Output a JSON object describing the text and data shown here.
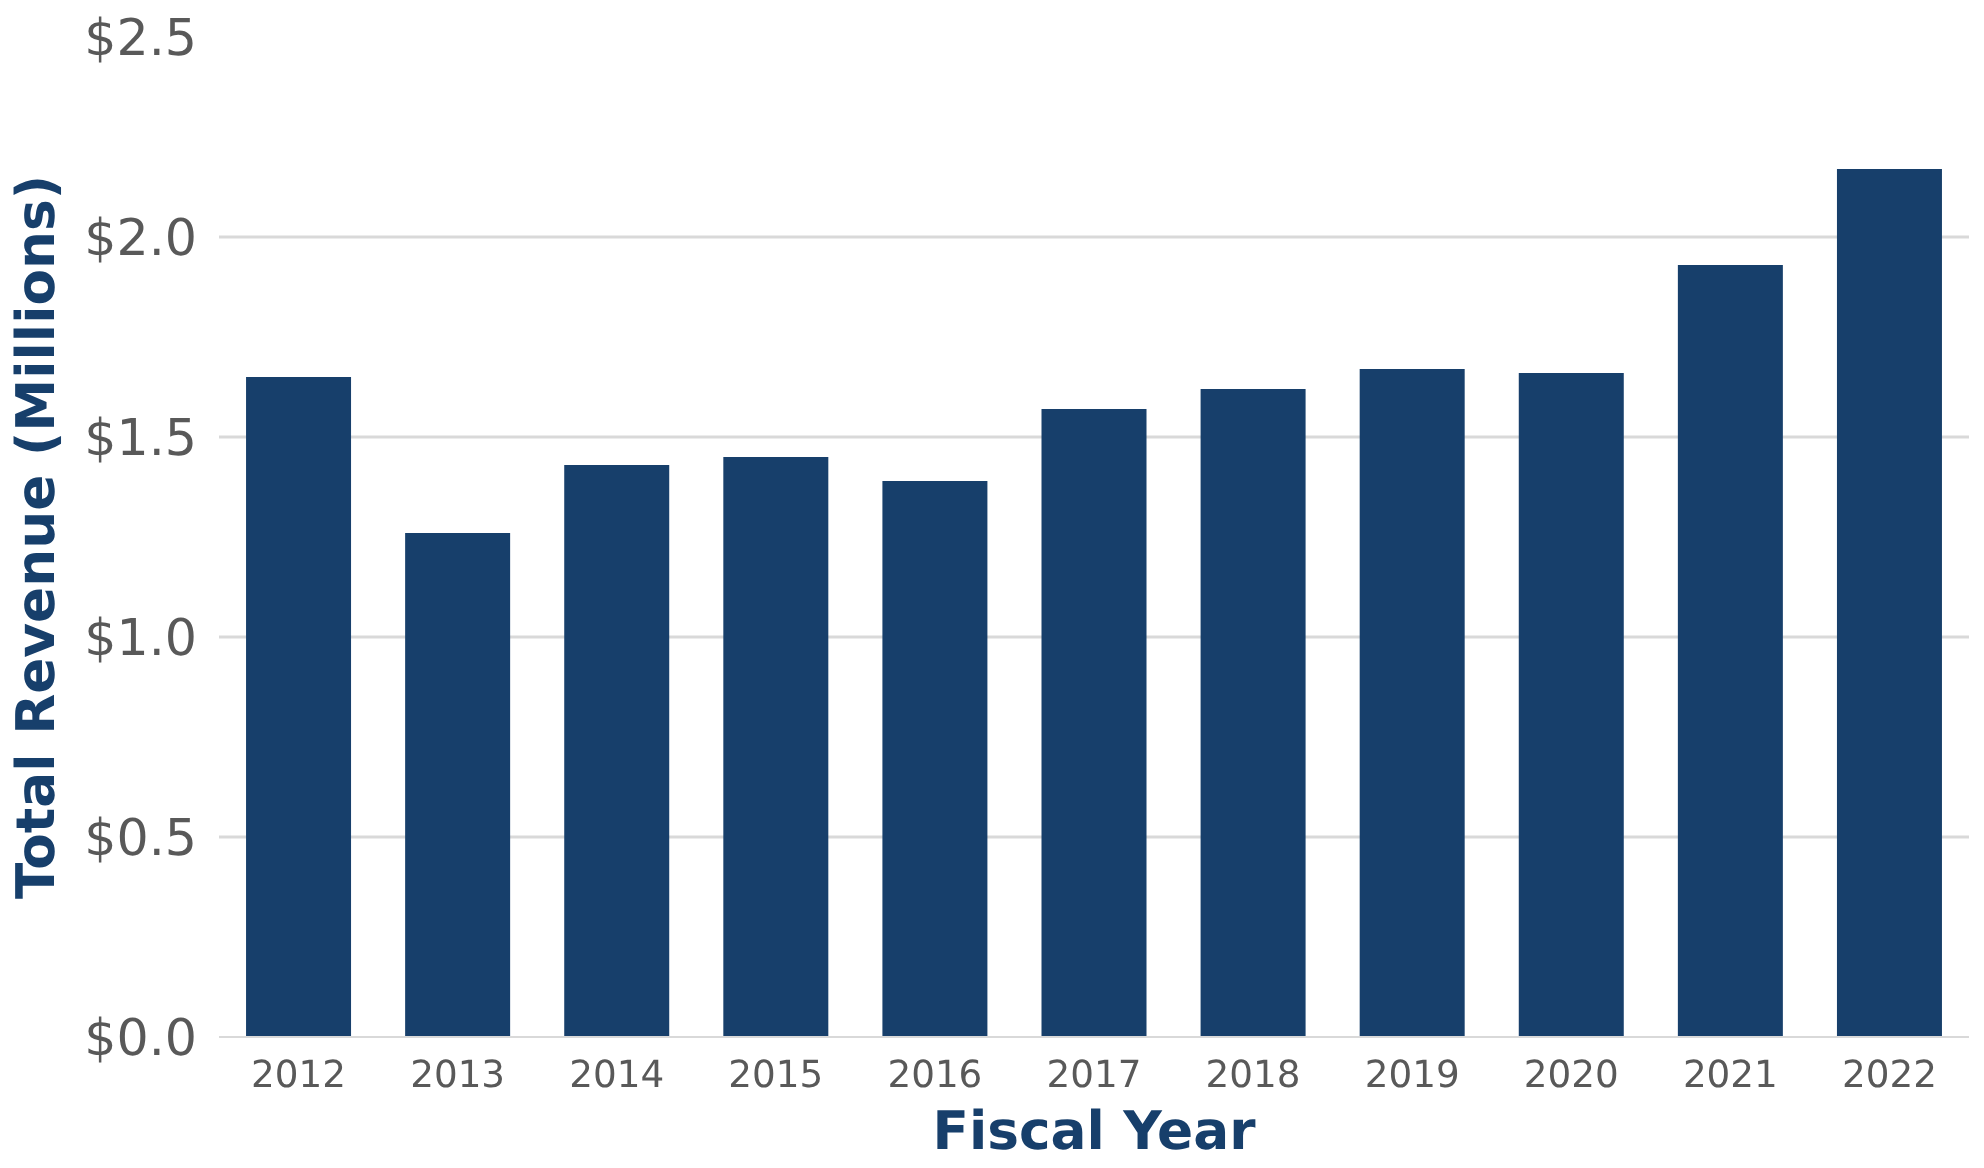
{
  "chart_data": {
    "type": "bar",
    "xlabel": "Fiscal Year",
    "ylabel": "Total Revenue (Millions)",
    "categories": [
      "2012",
      "2013",
      "2014",
      "2015",
      "2016",
      "2017",
      "2018",
      "2019",
      "2020",
      "2021",
      "2022"
    ],
    "values": [
      1.65,
      1.26,
      1.43,
      1.45,
      1.39,
      1.57,
      1.62,
      1.67,
      1.66,
      1.93,
      2.17
    ],
    "color": "#173f6b",
    "ylim": [
      0,
      2.5
    ],
    "yticks": [
      {
        "value": 0,
        "label": "$0.0"
      },
      {
        "value": 0.5,
        "label": "$0.5"
      },
      {
        "value": 1.0,
        "label": "$1.0"
      },
      {
        "value": 1.5,
        "label": "$1.5"
      },
      {
        "value": 2.0,
        "label": "$2.0"
      },
      {
        "value": 2.5,
        "label": "$2.5"
      }
    ],
    "grid": "y"
  }
}
